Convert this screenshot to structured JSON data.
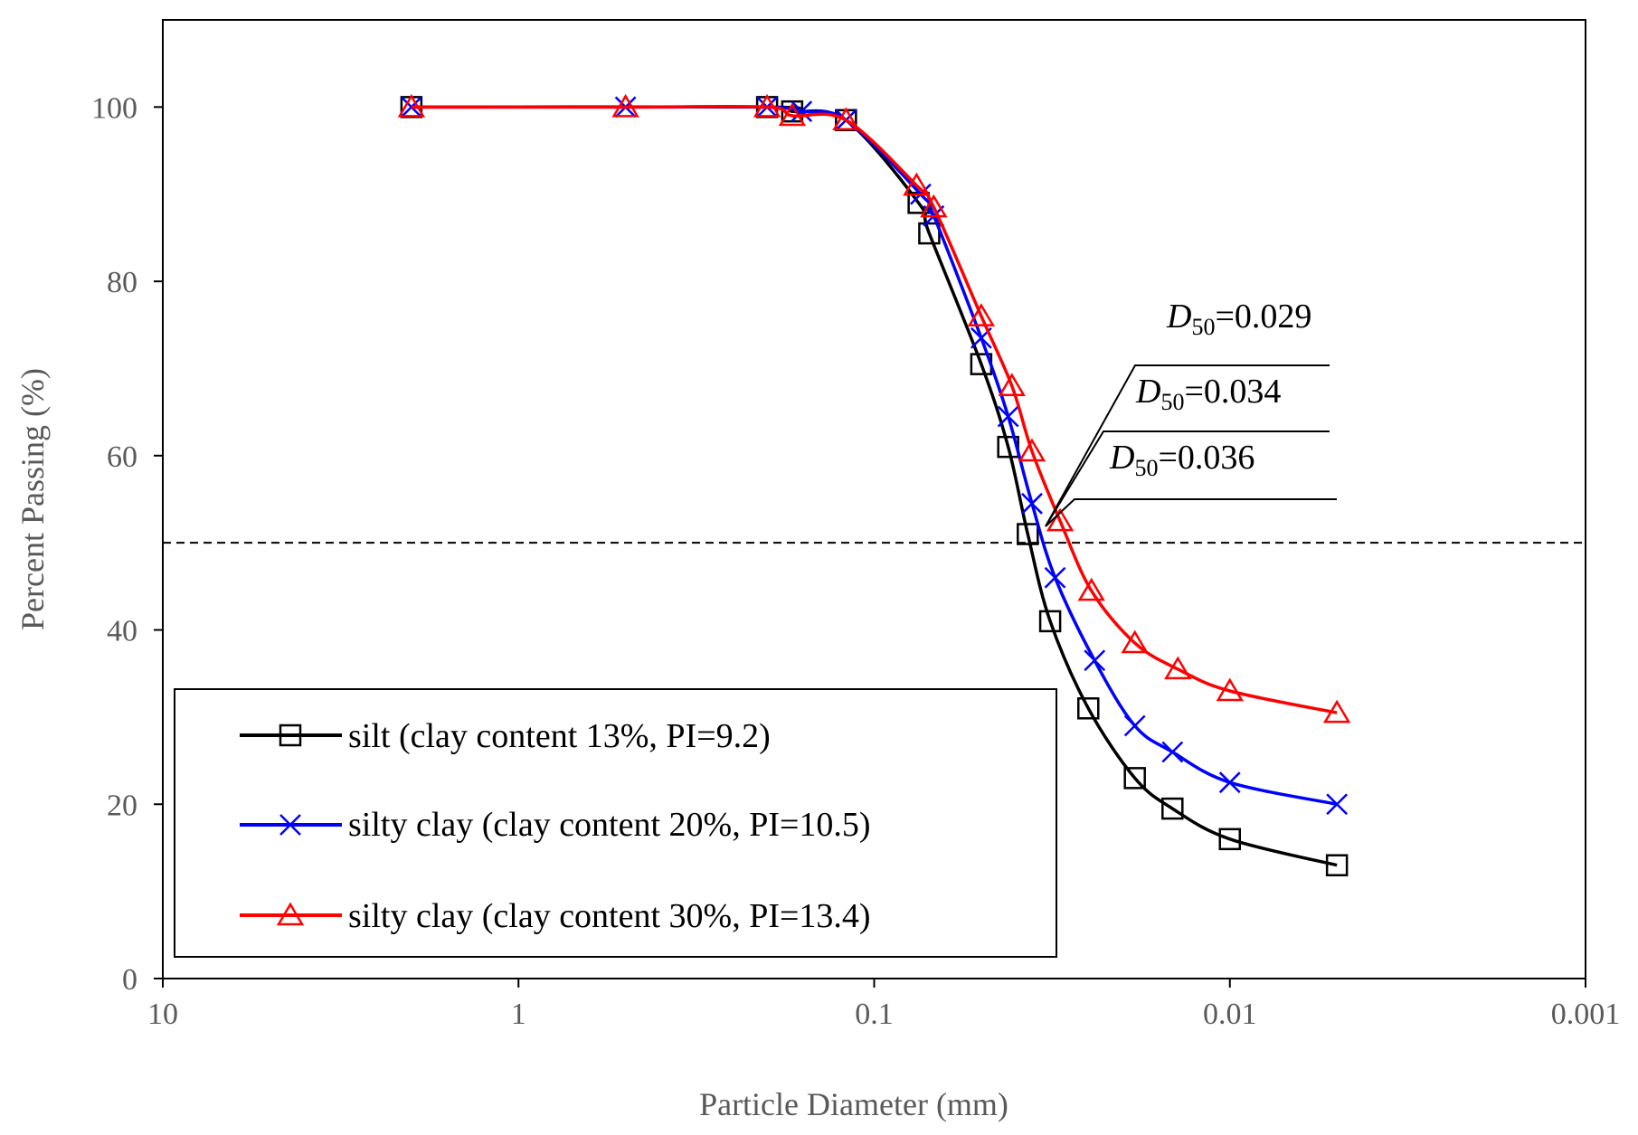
{
  "chart_data": {
    "type": "line",
    "title": "",
    "xlabel": "Particle Diameter (mm)",
    "ylabel": "Percent Passing (%)",
    "xscale": "log",
    "xreversed": true,
    "xlim": [
      10,
      0.001
    ],
    "ylim": [
      0,
      110
    ],
    "xticks": [
      {
        "value": 10,
        "label": "10"
      },
      {
        "value": 1,
        "label": "1"
      },
      {
        "value": 0.1,
        "label": "0.1"
      },
      {
        "value": 0.01,
        "label": "0.01"
      },
      {
        "value": 0.001,
        "label": "0.001"
      }
    ],
    "yticks": [
      {
        "value": 0,
        "label": "0"
      },
      {
        "value": 20,
        "label": "20"
      },
      {
        "value": 40,
        "label": "40"
      },
      {
        "value": 60,
        "label": "60"
      },
      {
        "value": 80,
        "label": "80"
      },
      {
        "value": 100,
        "label": "100"
      }
    ],
    "reference_line": {
      "y": 50,
      "style": "dashed"
    },
    "series": [
      {
        "name": "silt (clay content 13%, PI=9.2)",
        "color": "#000000",
        "marker": "square",
        "points": [
          [
            2.0,
            100
          ],
          [
            0.2,
            100
          ],
          [
            0.17,
            99.5
          ],
          [
            0.12,
            98.5
          ],
          [
            0.075,
            89
          ],
          [
            0.07,
            85.5
          ],
          [
            0.05,
            70.5
          ],
          [
            0.042,
            61
          ],
          [
            0.037,
            51
          ],
          [
            0.032,
            41
          ],
          [
            0.025,
            31
          ],
          [
            0.0185,
            23
          ],
          [
            0.0145,
            19.5
          ],
          [
            0.01,
            16
          ],
          [
            0.005,
            13
          ]
        ]
      },
      {
        "name": "silty clay (clay content 20%, PI=10.5)",
        "color": "#0000ff",
        "marker": "x",
        "points": [
          [
            2.0,
            100
          ],
          [
            0.5,
            100
          ],
          [
            0.2,
            100
          ],
          [
            0.16,
            99.5
          ],
          [
            0.12,
            98.5
          ],
          [
            0.074,
            90
          ],
          [
            0.068,
            87.5
          ],
          [
            0.05,
            73.5
          ],
          [
            0.042,
            64.5
          ],
          [
            0.036,
            54.5
          ],
          [
            0.031,
            46
          ],
          [
            0.024,
            36.5
          ],
          [
            0.0185,
            29
          ],
          [
            0.0145,
            26
          ],
          [
            0.01,
            22.5
          ],
          [
            0.005,
            20
          ]
        ]
      },
      {
        "name": "silty clay (clay content 30%, PI=13.4)",
        "color": "#ff0000",
        "marker": "triangle",
        "points": [
          [
            2.0,
            100
          ],
          [
            0.5,
            100
          ],
          [
            0.2,
            100
          ],
          [
            0.17,
            99
          ],
          [
            0.12,
            98.5
          ],
          [
            0.076,
            91
          ],
          [
            0.068,
            88.5
          ],
          [
            0.05,
            76
          ],
          [
            0.041,
            68
          ],
          [
            0.036,
            60.5
          ],
          [
            0.03,
            52.5
          ],
          [
            0.0245,
            44.5
          ],
          [
            0.0185,
            38.5
          ],
          [
            0.014,
            35.5
          ],
          [
            0.01,
            33
          ],
          [
            0.005,
            30.5
          ]
        ]
      }
    ],
    "annotations": [
      {
        "sym": "D",
        "sub": "50",
        "text": "=0.029"
      },
      {
        "sym": "D",
        "sub": "50",
        "text": "=0.034"
      },
      {
        "sym": "D",
        "sub": "50",
        "text": "=0.036"
      }
    ],
    "legend_position": "bottom-left"
  }
}
